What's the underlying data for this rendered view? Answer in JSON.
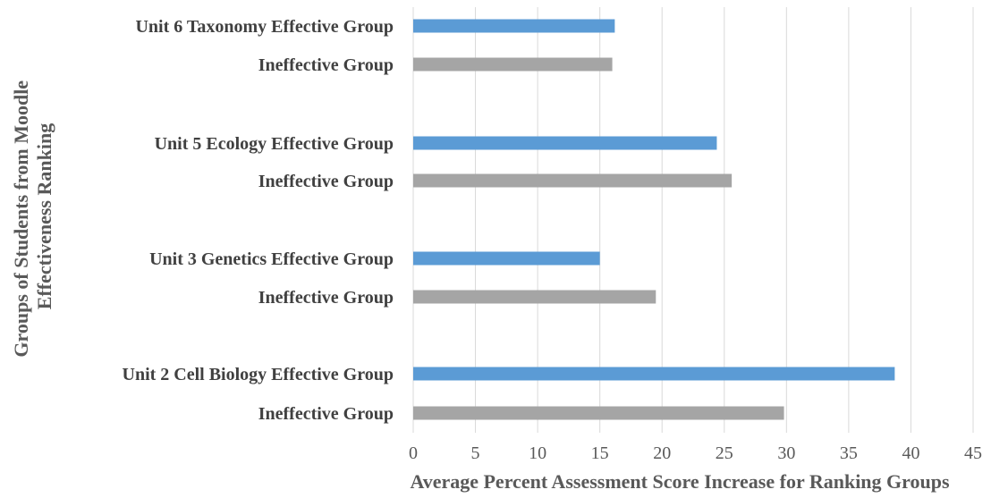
{
  "chart_data": {
    "type": "bar",
    "orientation": "horizontal",
    "categories": [
      "Unit 6 Taxonomy Effective Group",
      "Ineffective Group",
      "Unit 5 Ecology Effective Group",
      "Ineffective Group",
      "Unit 3 Genetics Effective Group",
      "Ineffective Group",
      "Unit 2 Cell Biology Effective Group",
      "Ineffective Group"
    ],
    "values": [
      16.2,
      16.0,
      24.4,
      25.6,
      15.0,
      19.5,
      38.7,
      29.8
    ],
    "bar_colors": [
      "#5b9bd5",
      "#a5a5a5",
      "#5b9bd5",
      "#a5a5a5",
      "#5b9bd5",
      "#a5a5a5",
      "#5b9bd5",
      "#a5a5a5"
    ],
    "xlim": [
      0,
      45
    ],
    "xticks": [
      "0",
      "5",
      "10",
      "15",
      "20",
      "25",
      "30",
      "35",
      "40",
      "45"
    ],
    "xlabel": "Average Percent Assessment Score Increase for Ranking Groups",
    "ylabel_lines": [
      "Groups of Students from Moodle",
      "Effectiveness Ranking"
    ],
    "grid": "vertical",
    "legend": "none"
  }
}
